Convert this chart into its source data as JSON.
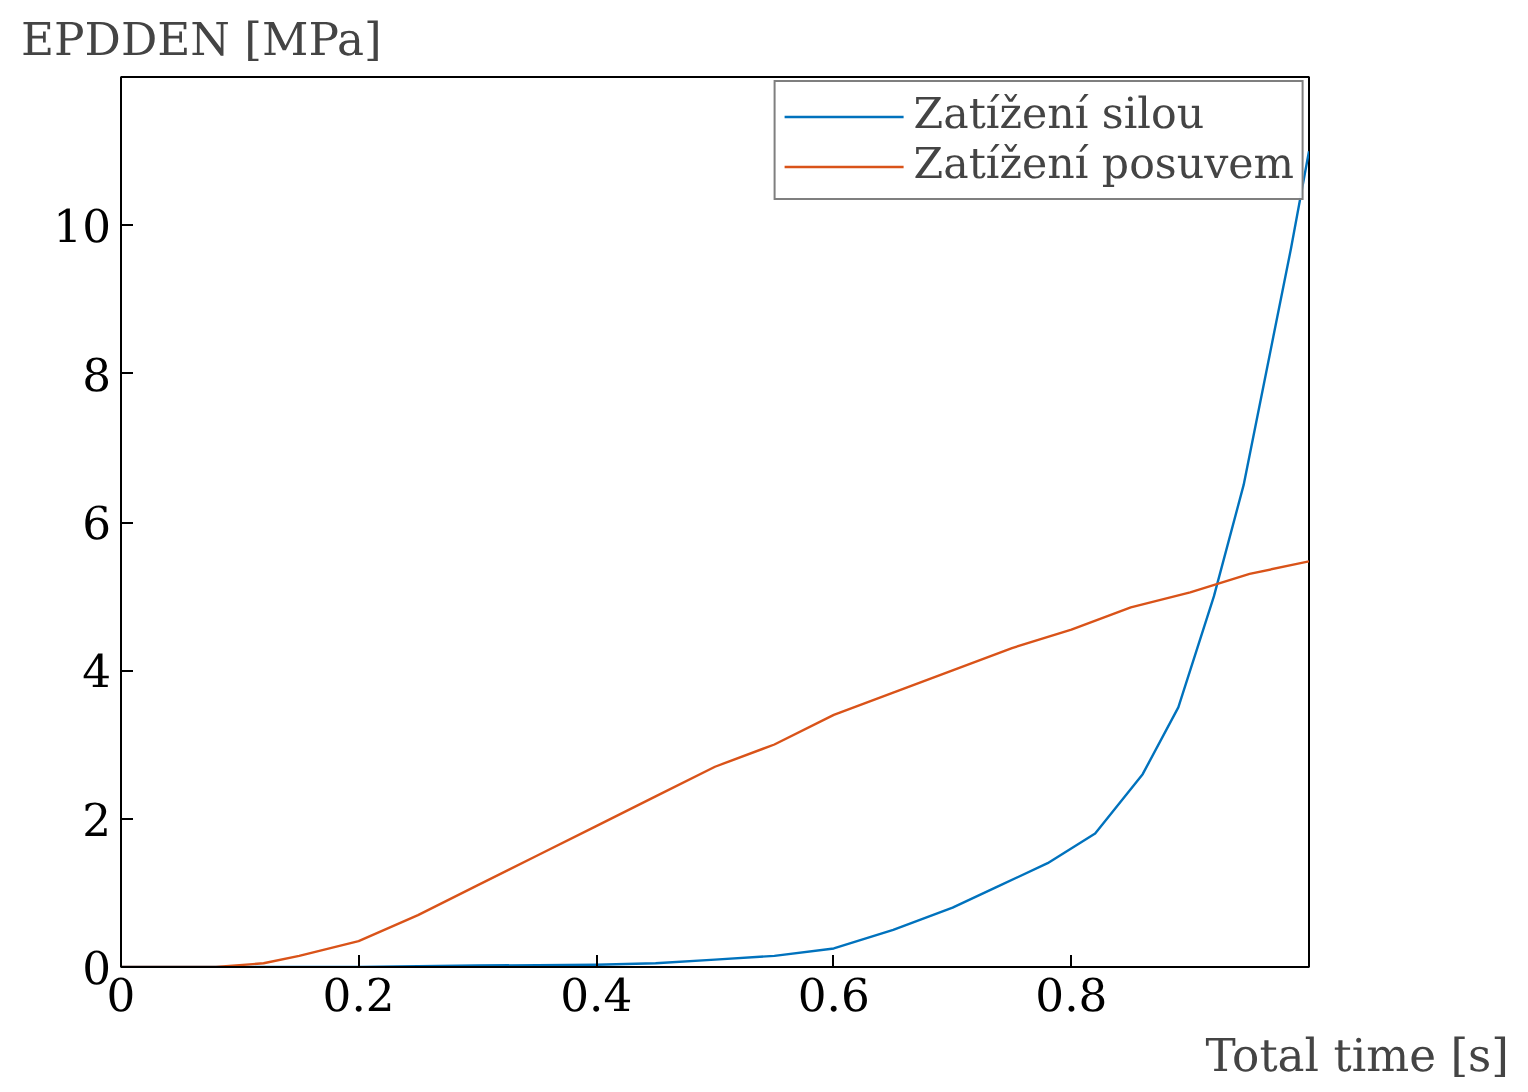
{
  "chart_data": {
    "type": "line",
    "xlabel": "Total time [s]",
    "ylabel": "EPDDEN [MPa]",
    "xlim": [
      0,
      1
    ],
    "ylim": [
      0,
      12
    ],
    "xticks": [
      0,
      0.2,
      0.4,
      0.6,
      0.8
    ],
    "yticks": [
      0,
      2,
      4,
      6,
      8,
      10
    ],
    "grid": false,
    "legend": "top right",
    "series": [
      {
        "name": "Zatížení silou",
        "color": "#0072bd",
        "x": [
          0,
          0.1,
          0.2,
          0.3,
          0.4,
          0.45,
          0.5,
          0.55,
          0.6,
          0.65,
          0.7,
          0.74,
          0.78,
          0.82,
          0.86,
          0.89,
          0.92,
          0.945,
          0.97,
          0.985,
          1.0
        ],
        "values": [
          0,
          0,
          0,
          0.02,
          0.03,
          0.05,
          0.1,
          0.15,
          0.25,
          0.5,
          0.8,
          1.1,
          1.4,
          1.8,
          2.6,
          3.5,
          5.0,
          6.5,
          8.5,
          9.7,
          11.0
        ]
      },
      {
        "name": "Zatížení posuvem",
        "color": "#d95319",
        "x": [
          0,
          0.08,
          0.12,
          0.15,
          0.2,
          0.25,
          0.3,
          0.35,
          0.4,
          0.45,
          0.5,
          0.55,
          0.6,
          0.65,
          0.7,
          0.75,
          0.8,
          0.85,
          0.9,
          0.95,
          1.0
        ],
        "values": [
          0,
          0,
          0.05,
          0.15,
          0.35,
          0.7,
          1.1,
          1.5,
          1.9,
          2.3,
          2.7,
          3.0,
          3.4,
          3.7,
          4.0,
          4.3,
          4.55,
          4.85,
          5.05,
          5.3,
          5.47
        ]
      }
    ]
  }
}
